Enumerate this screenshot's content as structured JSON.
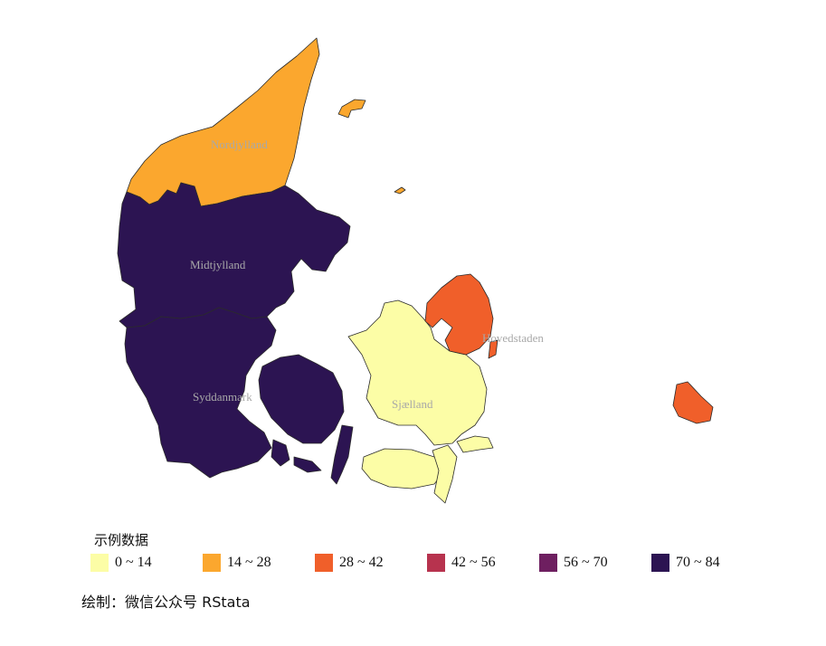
{
  "regions": [
    {
      "name": "Nordjylland",
      "value_range": "14 ~ 28",
      "color": "#FBA72E"
    },
    {
      "name": "Midtjylland",
      "value_range": "70 ~ 84",
      "color": "#2C1452"
    },
    {
      "name": "Syddanmark",
      "value_range": "70 ~ 84",
      "color": "#2C1452"
    },
    {
      "name": "Sjælland",
      "value_range": "0 ~ 14",
      "color": "#FCFDA6"
    },
    {
      "name": "Hovedstaden",
      "value_range": "28 ~ 42",
      "color": "#F05F2A"
    }
  ],
  "legend": {
    "title": "示例数据",
    "items": [
      {
        "label": "0 ~ 14",
        "color": "#FCFDA6"
      },
      {
        "label": "14 ~ 28",
        "color": "#FBA72E"
      },
      {
        "label": "28 ~ 42",
        "color": "#F05F2A"
      },
      {
        "label": "42 ~ 56",
        "color": "#B7334E"
      },
      {
        "label": "56 ~ 70",
        "color": "#6E1F60"
      },
      {
        "label": "70 ~ 84",
        "color": "#2C1452"
      }
    ]
  },
  "caption": "绘制：微信公众号 RStata"
}
